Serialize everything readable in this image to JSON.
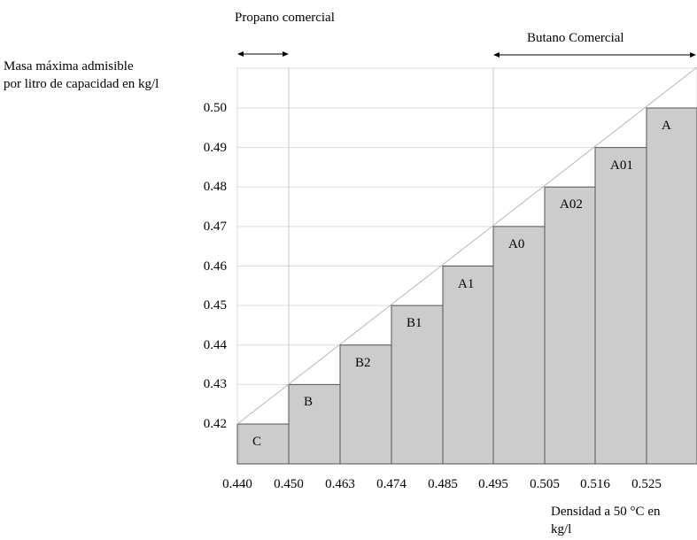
{
  "chart_data": {
    "type": "bar",
    "ylabel": "Masa máxima admisible\npor litro de capacidad en kg/l",
    "xlabel": "Densidad a 50 °C en\nkg/l",
    "x_ticks": [
      "0.440",
      "0.450",
      "0.463",
      "0.474",
      "0.485",
      "0.495",
      "0.505",
      "0.516",
      "0.525"
    ],
    "y_ticks": [
      "0.50",
      "0.49",
      "0.48",
      "0.47",
      "0.46",
      "0.45",
      "0.44",
      "0.43",
      "0.42"
    ],
    "categories": [
      "C",
      "B",
      "B2",
      "B1",
      "A1",
      "A0",
      "A02",
      "A01",
      "A"
    ],
    "values": [
      0.42,
      0.43,
      0.44,
      0.45,
      0.46,
      0.47,
      0.48,
      0.49,
      0.5
    ],
    "grid": true,
    "ranges": [
      {
        "label": "Propano comercial"
      },
      {
        "label": "Butano Comercial"
      }
    ]
  }
}
